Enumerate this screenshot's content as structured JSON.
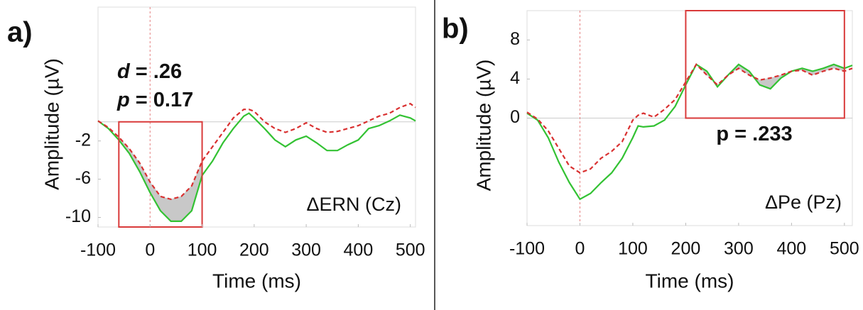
{
  "chart_data": [
    {
      "type": "line",
      "panel": "a)",
      "xlabel": "Time (ms)",
      "ylabel": "Amplitude (µV)",
      "label": "ΔERN (Cz)",
      "stats": [
        {
          "symbol": "d",
          "text": "= .26"
        },
        {
          "symbol": "p",
          "text": "= 0.17"
        }
      ],
      "x": [
        -100,
        -80,
        -60,
        -40,
        -20,
        0,
        20,
        40,
        60,
        80,
        100,
        120,
        140,
        160,
        180,
        190,
        200,
        220,
        240,
        260,
        280,
        300,
        320,
        340,
        360,
        380,
        400,
        420,
        440,
        460,
        480,
        500,
        510
      ],
      "series": [
        {
          "color": "#33c233",
          "dash": false,
          "values": [
            0.1,
            -0.7,
            -1.9,
            -3.3,
            -5.2,
            -7.4,
            -9.3,
            -10.4,
            -10.4,
            -9.3,
            -5.6,
            -4.1,
            -2.2,
            -0.7,
            0.6,
            0.9,
            0.4,
            -0.7,
            -1.9,
            -2.6,
            -1.9,
            -1.5,
            -2.2,
            -3.0,
            -3.0,
            -2.4,
            -1.9,
            -0.7,
            -0.4,
            0.1,
            0.7,
            0.4,
            0.1
          ]
        },
        {
          "color": "#d93030",
          "dash": true,
          "values": [
            0.1,
            -0.6,
            -1.6,
            -2.8,
            -4.3,
            -6.3,
            -7.8,
            -8.1,
            -7.8,
            -6.7,
            -4.1,
            -2.6,
            -1.1,
            0.4,
            1.3,
            1.3,
            1.1,
            0,
            -0.7,
            -1.1,
            -0.7,
            -0.1,
            -0.7,
            -1.1,
            -1.0,
            -0.7,
            -0.4,
            0.1,
            0.6,
            0.9,
            1.5,
            1.9,
            1.5
          ]
        }
      ],
      "xlim": [
        -100,
        510
      ],
      "ylim": [
        -11,
        12
      ],
      "xticks": [
        -100,
        0,
        100,
        200,
        300,
        400,
        500
      ],
      "yticks": [
        -10,
        -6,
        -2
      ],
      "hlines": [
        0
      ],
      "vlines": [
        0
      ],
      "highlight_xlim": [
        -60,
        100
      ],
      "highlight_ylim": [
        -11,
        0
      ],
      "highlight_color": "#d93a3a",
      "shade_color": "#c8c8c8"
    },
    {
      "type": "line",
      "panel": "b)",
      "xlabel": "Time (ms)",
      "ylabel": "Amplitude (µV)",
      "label": "ΔPe (Pz)",
      "stats": [
        {
          "text": "p = .233"
        }
      ],
      "x": [
        -100,
        -80,
        -60,
        -40,
        -20,
        0,
        20,
        40,
        60,
        80,
        100,
        110,
        120,
        140,
        160,
        180,
        200,
        220,
        240,
        260,
        280,
        300,
        320,
        340,
        360,
        380,
        400,
        420,
        440,
        460,
        480,
        500,
        515
      ],
      "series": [
        {
          "color": "#33c233",
          "dash": false,
          "values": [
            0.5,
            -0.2,
            -2.0,
            -4.5,
            -6.6,
            -8.3,
            -7.7,
            -6.6,
            -5.6,
            -4.1,
            -2.0,
            -0.8,
            -0.9,
            -0.8,
            -0.2,
            1.2,
            3.4,
            5.5,
            4.8,
            3.2,
            4.4,
            5.5,
            4.8,
            3.4,
            3.0,
            4.1,
            4.8,
            5.1,
            4.8,
            5.1,
            5.5,
            5.1,
            5.4
          ]
        },
        {
          "color": "#d93030",
          "dash": true,
          "values": [
            0.6,
            -0.1,
            -1.3,
            -3.1,
            -4.9,
            -5.6,
            -5.2,
            -4.1,
            -3.4,
            -2.4,
            -0.2,
            0.3,
            0.5,
            0.1,
            0.9,
            1.9,
            3.7,
            5.5,
            4.4,
            3.4,
            4.4,
            5.1,
            4.4,
            3.9,
            4.1,
            4.4,
            4.8,
            4.9,
            4.4,
            4.8,
            5.1,
            4.8,
            5.1
          ]
        }
      ],
      "xlim": [
        -100,
        515
      ],
      "ylim": [
        -11,
        11
      ],
      "xticks": [
        -100,
        0,
        100,
        200,
        300,
        400,
        500
      ],
      "yticks": [
        0,
        4,
        8
      ],
      "hlines": [
        0
      ],
      "vlines": [
        0
      ],
      "highlight_xlim": [
        200,
        500
      ],
      "highlight_ylim": [
        0,
        11
      ],
      "highlight_color": "#d93a3a",
      "shade_color": "#c8c8c8"
    }
  ]
}
